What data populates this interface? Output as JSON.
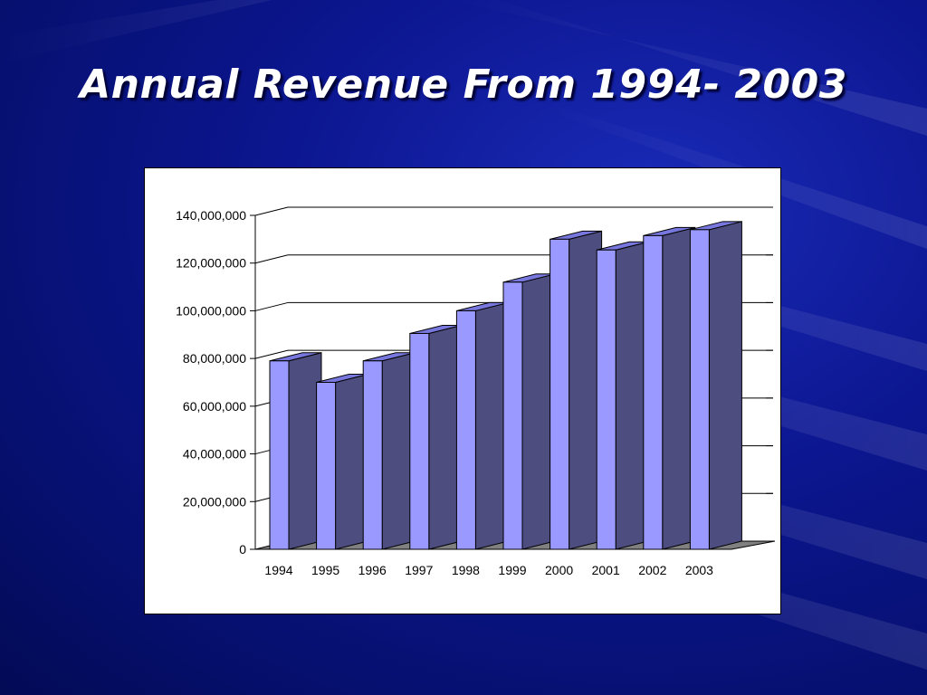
{
  "slide": {
    "title": "Annual Revenue From 1994- 2003"
  },
  "colors": {
    "background": "#0c1690",
    "bar_front": "#9999ff",
    "bar_side": "#4d4d80",
    "bar_top": "#7777dd",
    "floor": "#808080"
  },
  "chart_data": {
    "type": "bar",
    "title": "",
    "xlabel": "",
    "ylabel": "",
    "categories": [
      "1994",
      "1995",
      "1996",
      "1997",
      "1998",
      "1999",
      "2000",
      "2001",
      "2002",
      "2003"
    ],
    "values": [
      79000000,
      70000000,
      79000000,
      90500000,
      100000000,
      112000000,
      130000000,
      125500000,
      131500000,
      134000000
    ],
    "ylim": [
      0,
      140000000
    ],
    "yticks": [
      0,
      20000000,
      40000000,
      60000000,
      80000000,
      100000000,
      120000000,
      140000000
    ],
    "ytick_labels": [
      "0",
      "20,000,000",
      "40,000,000",
      "60,000,000",
      "80,000,000",
      "100,000,000",
      "120,000,000",
      "140,000,000"
    ],
    "grid": true,
    "legend": "none",
    "style": "3d-column"
  }
}
